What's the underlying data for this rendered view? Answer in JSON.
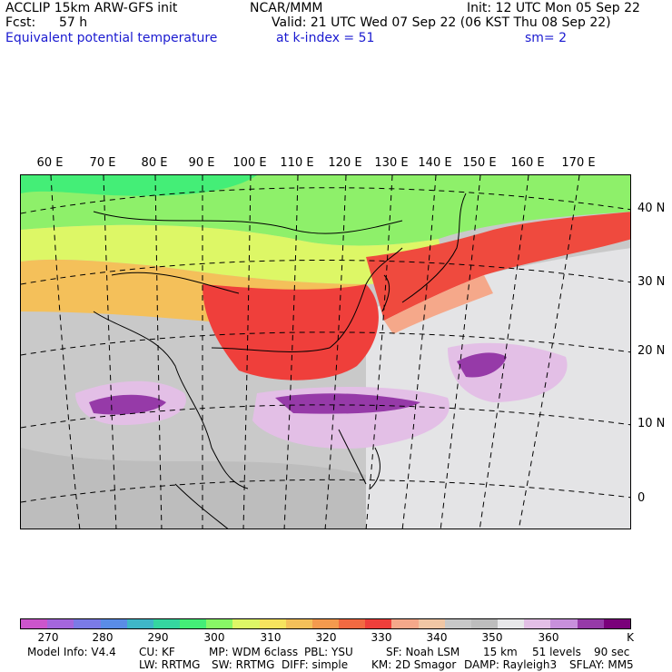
{
  "header": {
    "model": "ACCLIP 15km ARW-GFS init",
    "org": "NCAR/MMM",
    "init": "Init: 12 UTC Mon 05 Sep 22",
    "fcst_label": "Fcst:",
    "fcst_value": "57 h",
    "valid": "Valid: 21 UTC Wed 07 Sep 22 (06 KST Thu 08 Sep 22)",
    "field": "Equivalent potential temperature",
    "level": "at k-index =  51",
    "smoothing": "sm= 2"
  },
  "map": {
    "lon_labels": [
      "60 E",
      "70 E",
      "80 E",
      "90 E",
      "100 E",
      "110 E",
      "120 E",
      "130 E",
      "140 E",
      "150 E",
      "160 E",
      "170 E"
    ],
    "lat_labels": [
      "40 N",
      "30 N",
      "20 N",
      "10 N",
      "0"
    ]
  },
  "colorbar": {
    "colors": [
      "#cc55cc",
      "#a466dd",
      "#7b7be6",
      "#5a8ce6",
      "#3fb6c8",
      "#35d6a0",
      "#44ee77",
      "#88f766",
      "#ddf766",
      "#f6e35e",
      "#f4c05a",
      "#f49a4e",
      "#f26a42",
      "#ef3f3b",
      "#f5a88a",
      "#f0c6a4",
      "#c8c8c8",
      "#bdbdbd",
      "#e8e8ea",
      "#e3bfe6",
      "#c890dc",
      "#963aa8",
      "#7a007a"
    ],
    "tick_labels": [
      "270",
      "280",
      "290",
      "300",
      "310",
      "320",
      "330",
      "340",
      "350",
      "360",
      "K"
    ]
  },
  "footer": {
    "line1": [
      "Model Info: V4.4",
      "CU: KF",
      "MP: WDM 6class",
      "PBL: YSU",
      "SF: Noah LSM",
      "15 km",
      "51 levels",
      "90 sec"
    ],
    "line2": [
      "LW: RRTMG",
      "SW: RRTMG",
      "DIFF: simple",
      "KM: 2D Smagor",
      "DAMP: Rayleigh3",
      "SFLAY: MM5"
    ]
  }
}
